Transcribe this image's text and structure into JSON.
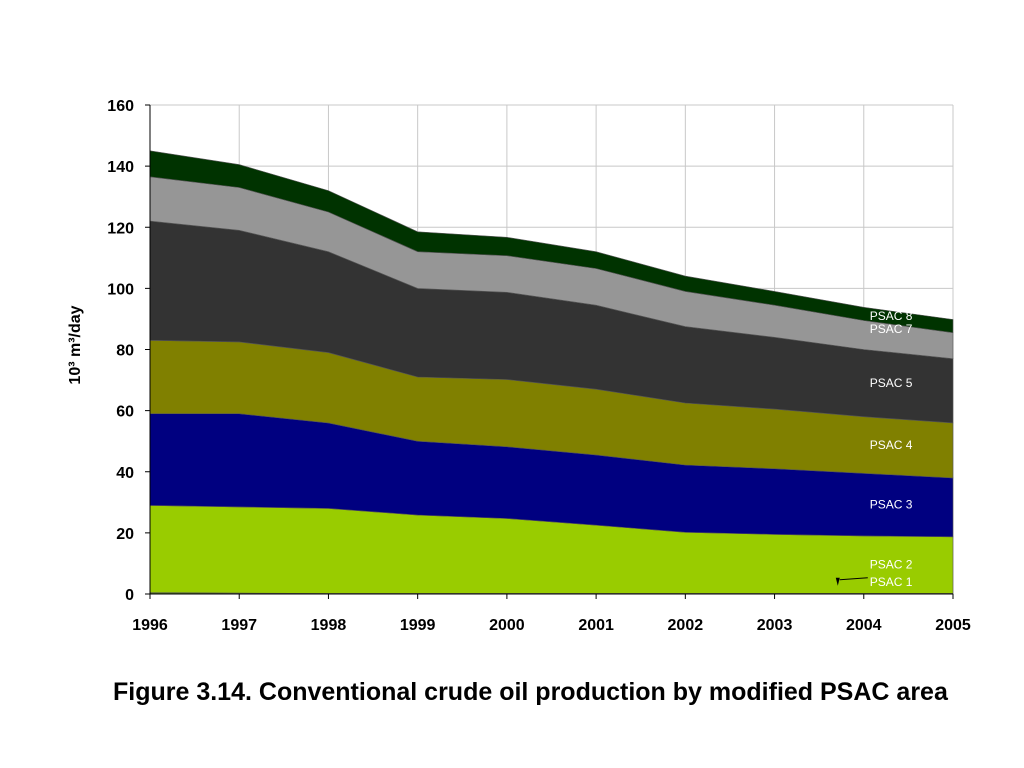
{
  "chart_data": {
    "type": "area",
    "stacked": true,
    "x": [
      "1996",
      "1997",
      "1998",
      "1999",
      "2000",
      "2001",
      "2002",
      "2003",
      "2004",
      "2005"
    ],
    "ylabel": "10³ m³/day",
    "ylim": [
      0,
      160
    ],
    "yticks": [
      "0",
      "20",
      "40",
      "60",
      "80",
      "100",
      "120",
      "140",
      "160"
    ],
    "grid": true,
    "series": [
      {
        "name": "PSAC 1",
        "color": "#556B2F",
        "values": [
          0.5,
          0.3,
          0.2,
          0.2,
          0.2,
          0.2,
          0.2,
          0.2,
          0.2,
          0.2
        ]
      },
      {
        "name": "PSAC 2",
        "color": "#99CC00",
        "values": [
          28.5,
          28.2,
          27.8,
          25.6,
          24.5,
          22.3,
          20.0,
          19.3,
          18.8,
          18.5
        ]
      },
      {
        "name": "PSAC 3",
        "color": "#000080",
        "values": [
          30,
          30.5,
          28,
          24.2,
          23.5,
          23,
          22,
          21.5,
          20.5,
          19.3
        ]
      },
      {
        "name": "PSAC 4",
        "color": "#808000",
        "values": [
          24,
          23.5,
          23,
          21,
          22,
          21.5,
          20.3,
          19.5,
          18.5,
          18
        ]
      },
      {
        "name": "PSAC 5",
        "color": "#333333",
        "values": [
          39,
          36.5,
          33,
          29,
          28.5,
          27.5,
          25,
          23.5,
          22,
          21
        ]
      },
      {
        "name": "PSAC 7",
        "color": "#969696",
        "values": [
          14.5,
          14,
          13,
          12,
          12,
          12,
          11.5,
          10.5,
          9.5,
          8.5
        ]
      },
      {
        "name": "PSAC 8",
        "color": "#003300",
        "values": [
          8.5,
          7.5,
          7,
          6.5,
          6,
          5.5,
          5,
          4.5,
          4.3,
          4.3
        ]
      }
    ],
    "area_labels": [
      "PSAC 8",
      "PSAC 7",
      "PSAC 5",
      "PSAC 4",
      "PSAC 3",
      "PSAC 2",
      "PSAC 1"
    ]
  },
  "caption": "Figure 3.14. Conventional crude oil production by modified PSAC area"
}
